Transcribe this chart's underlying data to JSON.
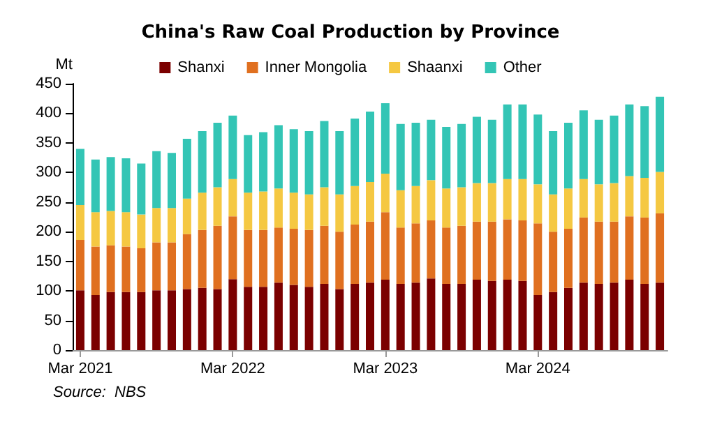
{
  "chart_data": {
    "type": "bar",
    "stacked": true,
    "title": "China's Raw Coal Production by Province",
    "ylabel": "Mt",
    "annotations": [
      "Source:  NBS"
    ],
    "categories": [
      "Mar 2021",
      null,
      null,
      null,
      null,
      null,
      null,
      null,
      null,
      null,
      "Mar 2022",
      null,
      null,
      null,
      null,
      null,
      null,
      null,
      null,
      null,
      "Mar 2023",
      null,
      null,
      null,
      null,
      null,
      null,
      null,
      null,
      null,
      "Mar 2024",
      null,
      null,
      null,
      null,
      null,
      null,
      null,
      null
    ],
    "series": [
      {
        "name": "Shanxi",
        "color": "#7b0000",
        "values": [
          101,
          93,
          98,
          98,
          98,
          101,
          101,
          103,
          105,
          103,
          120,
          107,
          107,
          114,
          110,
          107,
          112,
          103,
          112,
          114,
          119,
          112,
          114,
          121,
          112,
          112,
          119,
          117,
          119,
          117,
          93,
          98,
          105,
          114,
          112,
          114,
          119,
          112,
          114
        ]
      },
      {
        "name": "Inner Mongolia",
        "color": "#e07020",
        "values": [
          85,
          82,
          79,
          77,
          74,
          81,
          81,
          93,
          98,
          107,
          106,
          96,
          96,
          93,
          95,
          96,
          98,
          97,
          100,
          103,
          114,
          95,
          100,
          98,
          95,
          98,
          98,
          100,
          102,
          102,
          121,
          102,
          100,
          110,
          105,
          103,
          107,
          112,
          117
        ]
      },
      {
        "name": "Shaanxi",
        "color": "#f5c842",
        "values": [
          59,
          58,
          58,
          58,
          57,
          58,
          58,
          60,
          63,
          65,
          63,
          63,
          65,
          66,
          61,
          60,
          65,
          63,
          65,
          67,
          65,
          63,
          63,
          68,
          66,
          65,
          65,
          65,
          68,
          70,
          66,
          63,
          68,
          65,
          63,
          65,
          68,
          67,
          70
        ]
      },
      {
        "name": "Other",
        "color": "#33c5b5",
        "values": [
          95,
          89,
          91,
          91,
          86,
          96,
          93,
          101,
          104,
          109,
          107,
          97,
          100,
          107,
          107,
          107,
          112,
          107,
          114,
          119,
          119,
          112,
          107,
          102,
          104,
          107,
          112,
          107,
          126,
          126,
          118,
          107,
          111,
          116,
          109,
          114,
          121,
          121,
          127
        ]
      }
    ],
    "ylim": [
      0,
      450
    ],
    "yticks": [
      0,
      50,
      100,
      150,
      200,
      250,
      300,
      350,
      400,
      450
    ],
    "grid": false,
    "legend": "top"
  }
}
